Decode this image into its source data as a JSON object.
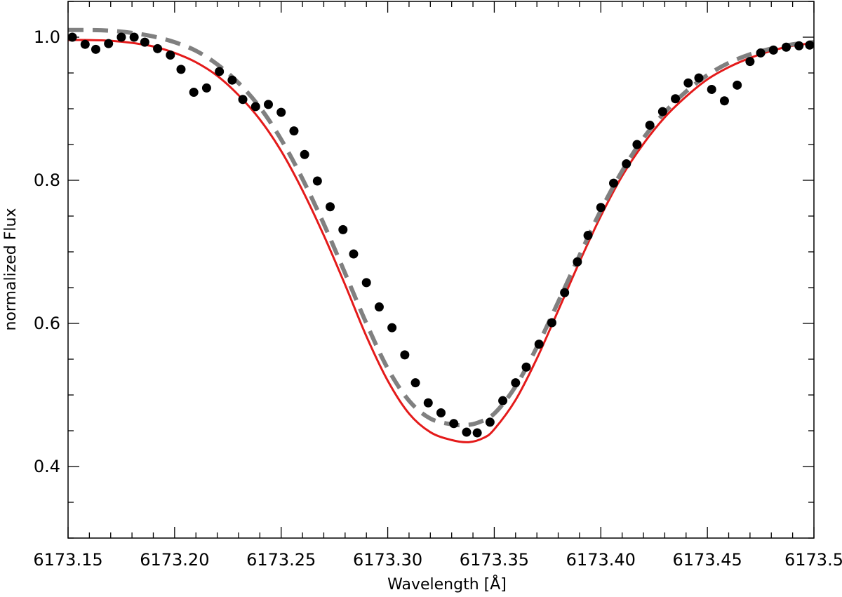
{
  "chart_data": {
    "type": "line",
    "title": "",
    "xlabel": "Wavelength [Å]",
    "ylabel": "normalized Flux",
    "xlim": [
      6173.15,
      6173.5
    ],
    "ylim": [
      0.3,
      1.05
    ],
    "grid": false,
    "legend": "none",
    "x_ticks": [
      6173.15,
      6173.2,
      6173.25,
      6173.3,
      6173.35,
      6173.4,
      6173.45,
      6173.5
    ],
    "x_tick_labels": [
      "6173.15",
      "6173.20",
      "6173.25",
      "6173.30",
      "6173.35",
      "6173.40",
      "6173.45",
      "6173.5"
    ],
    "y_ticks": [
      0.4,
      0.6,
      0.8,
      1.0
    ],
    "y_tick_labels": [
      "0.4",
      "0.6",
      "0.8",
      "1.0"
    ],
    "series": [
      {
        "kind": "scatter",
        "color": "#000000",
        "x": [
          6173.152,
          6173.158,
          6173.163,
          6173.169,
          6173.175,
          6173.181,
          6173.186,
          6173.192,
          6173.198,
          6173.203,
          6173.209,
          6173.215,
          6173.221,
          6173.227,
          6173.232,
          6173.238,
          6173.244,
          6173.25,
          6173.256,
          6173.261,
          6173.267,
          6173.273,
          6173.279,
          6173.284,
          6173.29,
          6173.296,
          6173.302,
          6173.308,
          6173.313,
          6173.319,
          6173.325,
          6173.331,
          6173.337,
          6173.342,
          6173.348,
          6173.354,
          6173.36,
          6173.365,
          6173.371,
          6173.377,
          6173.383,
          6173.389,
          6173.394,
          6173.4,
          6173.406,
          6173.412,
          6173.417,
          6173.423,
          6173.429,
          6173.435,
          6173.441,
          6173.446,
          6173.452,
          6173.458,
          6173.464,
          6173.47,
          6173.475,
          6173.481,
          6173.487,
          6173.493,
          6173.498
        ],
        "y": [
          1.0,
          0.99,
          0.983,
          0.991,
          1.0,
          1.0,
          0.993,
          0.984,
          0.975,
          0.955,
          0.923,
          0.929,
          0.952,
          0.94,
          0.913,
          0.903,
          0.906,
          0.895,
          0.869,
          0.836,
          0.799,
          0.763,
          0.731,
          0.697,
          0.657,
          0.623,
          0.594,
          0.556,
          0.517,
          0.489,
          0.475,
          0.46,
          0.448,
          0.447,
          0.462,
          0.492,
          0.517,
          0.539,
          0.571,
          0.601,
          0.643,
          0.686,
          0.723,
          0.762,
          0.796,
          0.823,
          0.85,
          0.877,
          0.896,
          0.914,
          0.936,
          0.943,
          0.927,
          0.911,
          0.933,
          0.966,
          0.978,
          0.982,
          0.986,
          0.988,
          0.989
        ]
      },
      {
        "kind": "line",
        "color": "#e41a1a",
        "dash": "solid",
        "x": [
          6173.15,
          6173.16,
          6173.17,
          6173.18,
          6173.19,
          6173.2,
          6173.21,
          6173.22,
          6173.23,
          6173.24,
          6173.25,
          6173.26,
          6173.27,
          6173.28,
          6173.29,
          6173.3,
          6173.31,
          6173.32,
          6173.33,
          6173.338,
          6173.345,
          6173.35,
          6173.36,
          6173.37,
          6173.38,
          6173.39,
          6173.4,
          6173.41,
          6173.42,
          6173.43,
          6173.44,
          6173.45,
          6173.46,
          6173.47,
          6173.48,
          6173.49,
          6173.5
        ],
        "y": [
          0.996,
          0.996,
          0.995,
          0.992,
          0.987,
          0.978,
          0.965,
          0.946,
          0.919,
          0.885,
          0.841,
          0.786,
          0.723,
          0.654,
          0.582,
          0.52,
          0.474,
          0.448,
          0.437,
          0.434,
          0.44,
          0.452,
          0.493,
          0.551,
          0.618,
          0.686,
          0.75,
          0.806,
          0.851,
          0.888,
          0.917,
          0.941,
          0.958,
          0.971,
          0.981,
          0.988,
          0.992
        ]
      },
      {
        "kind": "line",
        "color": "#808080",
        "dash": "dashed",
        "x": [
          6173.15,
          6173.16,
          6173.17,
          6173.18,
          6173.19,
          6173.2,
          6173.21,
          6173.22,
          6173.23,
          6173.24,
          6173.25,
          6173.26,
          6173.27,
          6173.28,
          6173.29,
          6173.3,
          6173.31,
          6173.32,
          6173.33,
          6173.336,
          6173.342,
          6173.35,
          6173.36,
          6173.37,
          6173.38,
          6173.39,
          6173.4,
          6173.41,
          6173.42,
          6173.43,
          6173.44,
          6173.45,
          6173.46,
          6173.47,
          6173.48,
          6173.49,
          6173.5
        ],
        "y": [
          1.01,
          1.01,
          1.009,
          1.006,
          1.001,
          0.993,
          0.981,
          0.962,
          0.936,
          0.902,
          0.857,
          0.802,
          0.739,
          0.67,
          0.6,
          0.537,
          0.492,
          0.467,
          0.459,
          0.458,
          0.461,
          0.474,
          0.512,
          0.567,
          0.63,
          0.695,
          0.758,
          0.813,
          0.859,
          0.895,
          0.924,
          0.947,
          0.964,
          0.976,
          0.984,
          0.99,
          0.993
        ]
      }
    ]
  }
}
